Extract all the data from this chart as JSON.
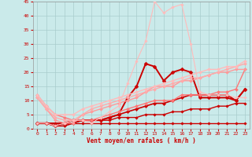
{
  "xlabel": "Vent moyen/en rafales ( km/h )",
  "xlim": [
    -0.5,
    23.5
  ],
  "ylim": [
    0,
    45
  ],
  "yticks": [
    0,
    5,
    10,
    15,
    20,
    25,
    30,
    35,
    40,
    45
  ],
  "xticks": [
    0,
    1,
    2,
    3,
    4,
    5,
    6,
    7,
    8,
    9,
    10,
    11,
    12,
    13,
    14,
    15,
    16,
    17,
    18,
    19,
    20,
    21,
    22,
    23
  ],
  "background_color": "#caeaea",
  "grid_color": "#a8cccc",
  "lines": [
    {
      "x": [
        0,
        1,
        2,
        3,
        4,
        5,
        6,
        7,
        8,
        9,
        10,
        11,
        12,
        13,
        14,
        15,
        16,
        17,
        18,
        19,
        20,
        21,
        22,
        23
      ],
      "y": [
        2,
        2,
        2,
        2,
        2,
        2,
        2,
        2,
        2,
        2,
        2,
        2,
        2,
        2,
        2,
        2,
        2,
        2,
        2,
        2,
        2,
        2,
        2,
        2
      ],
      "color": "#cc0000",
      "linewidth": 1.0,
      "marker": "D",
      "markersize": 1.8
    },
    {
      "x": [
        0,
        1,
        2,
        3,
        4,
        5,
        6,
        7,
        8,
        9,
        10,
        11,
        12,
        13,
        14,
        15,
        16,
        17,
        18,
        19,
        20,
        21,
        22,
        23
      ],
      "y": [
        2,
        2,
        2,
        2,
        2,
        3,
        3,
        3,
        3,
        4,
        4,
        4,
        5,
        5,
        5,
        6,
        6,
        7,
        7,
        7,
        8,
        8,
        9,
        9
      ],
      "color": "#cc0000",
      "linewidth": 1.0,
      "marker": "D",
      "markersize": 1.8
    },
    {
      "x": [
        0,
        1,
        2,
        3,
        4,
        5,
        6,
        7,
        8,
        9,
        10,
        11,
        12,
        13,
        14,
        15,
        16,
        17,
        18,
        19,
        20,
        21,
        22,
        23
      ],
      "y": [
        2,
        2,
        1,
        1,
        2,
        3,
        3,
        3,
        4,
        5,
        6,
        7,
        8,
        9,
        9,
        10,
        11,
        12,
        12,
        12,
        12,
        12,
        10,
        14
      ],
      "color": "#cc0000",
      "linewidth": 1.2,
      "marker": "D",
      "markersize": 2.2
    },
    {
      "x": [
        0,
        1,
        2,
        3,
        4,
        5,
        6,
        7,
        8,
        9,
        10,
        11,
        12,
        13,
        14,
        15,
        16,
        17,
        18,
        19,
        20,
        21,
        22,
        23
      ],
      "y": [
        2,
        2,
        1,
        2,
        3,
        3,
        3,
        3,
        4,
        5,
        11,
        15,
        23,
        22,
        17,
        20,
        21,
        20,
        11,
        11,
        11,
        11,
        10,
        14
      ],
      "color": "#cc0000",
      "linewidth": 1.4,
      "marker": "D",
      "markersize": 2.5
    },
    {
      "x": [
        0,
        1,
        2,
        3,
        4,
        5,
        6,
        7,
        8,
        9,
        10,
        11,
        12,
        13,
        14,
        15,
        16,
        17,
        18,
        19,
        20,
        21,
        22,
        23
      ],
      "y": [
        12,
        8,
        5,
        4,
        3,
        3,
        3,
        4,
        5,
        6,
        7,
        8,
        9,
        10,
        10,
        10,
        12,
        12,
        12,
        12,
        13,
        13,
        14,
        21
      ],
      "color": "#ff7777",
      "linewidth": 1.0,
      "marker": "D",
      "markersize": 2.0
    },
    {
      "x": [
        0,
        1,
        2,
        3,
        4,
        5,
        6,
        7,
        8,
        9,
        10,
        11,
        12,
        13,
        14,
        15,
        16,
        17,
        18,
        19,
        20,
        21,
        22,
        23
      ],
      "y": [
        11,
        7,
        3,
        2,
        2,
        5,
        6,
        7,
        8,
        9,
        10,
        11,
        13,
        15,
        15,
        15,
        17,
        17,
        18,
        19,
        20,
        20,
        21,
        21
      ],
      "color": "#ff9999",
      "linewidth": 1.0,
      "marker": "D",
      "markersize": 2.0
    },
    {
      "x": [
        0,
        1,
        2,
        3,
        4,
        5,
        6,
        7,
        8,
        9,
        10,
        11,
        12,
        13,
        14,
        15,
        16,
        17,
        18,
        19,
        20,
        21,
        22,
        23
      ],
      "y": [
        11,
        7,
        4,
        3,
        3,
        5,
        7,
        8,
        9,
        10,
        11,
        12,
        13,
        14,
        15,
        16,
        17,
        18,
        18,
        19,
        20,
        21,
        22,
        23
      ],
      "color": "#ffaaaa",
      "linewidth": 1.0,
      "marker": "D",
      "markersize": 2.0
    },
    {
      "x": [
        0,
        1,
        2,
        3,
        4,
        5,
        6,
        7,
        8,
        9,
        10,
        11,
        12,
        13,
        14,
        15,
        16,
        17,
        18,
        19,
        20,
        21,
        22,
        23
      ],
      "y": [
        12,
        8,
        5,
        5,
        5,
        7,
        8,
        9,
        10,
        11,
        12,
        13,
        14,
        15,
        16,
        17,
        18,
        19,
        20,
        21,
        21,
        22,
        22,
        24
      ],
      "color": "#ffbbbb",
      "linewidth": 1.0,
      "marker": "D",
      "markersize": 2.0
    },
    {
      "x": [
        0,
        1,
        2,
        3,
        4,
        5,
        6,
        7,
        8,
        9,
        10,
        11,
        12,
        13,
        14,
        15,
        16,
        17,
        18,
        19,
        20,
        21,
        22,
        23
      ],
      "y": [
        2,
        2,
        1,
        2,
        3,
        3,
        2,
        4,
        6,
        8,
        16,
        24,
        31,
        45,
        41,
        43,
        44,
        30,
        13,
        12,
        12,
        12,
        11,
        11
      ],
      "color": "#ffbbbb",
      "linewidth": 0.8,
      "marker": "D",
      "markersize": 1.8
    }
  ]
}
